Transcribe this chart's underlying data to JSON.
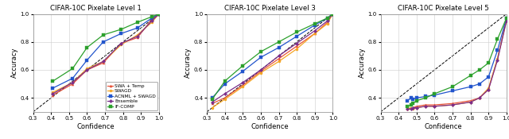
{
  "titles": [
    "CIFAR-10C Pixelate Level 1",
    "CIFAR-10C Pixelate Level 3",
    "CIFAR-10C Pixelate Level 5"
  ],
  "legend_labels": [
    "SWA + Temp",
    "SWAGD",
    "ACNML + SWAGD",
    "Ensemble",
    "IF-COMP"
  ],
  "colors": [
    "#e8543a",
    "#f5a623",
    "#2255cc",
    "#7b2d8b",
    "#2ca02c"
  ],
  "markers": [
    "^",
    "o",
    "s",
    "D",
    "s"
  ],
  "plot1": {
    "swa_temp": [
      [
        0.41,
        0.52,
        0.6,
        0.69,
        0.79,
        0.88,
        0.96,
        1.0
      ],
      [
        0.42,
        0.5,
        0.6,
        0.65,
        0.79,
        0.83,
        0.96,
        1.0
      ]
    ],
    "swagd": [
      [
        0.41,
        0.52,
        0.6,
        0.69,
        0.79,
        0.88,
        0.96,
        1.0
      ],
      [
        0.44,
        0.51,
        0.61,
        0.66,
        0.78,
        0.85,
        0.94,
        1.0
      ]
    ],
    "acnml_swagd": [
      [
        0.41,
        0.52,
        0.6,
        0.69,
        0.79,
        0.88,
        0.96,
        1.0
      ],
      [
        0.47,
        0.54,
        0.67,
        0.8,
        0.86,
        0.9,
        0.97,
        1.0
      ]
    ],
    "ensemble": [
      [
        0.41,
        0.52,
        0.6,
        0.69,
        0.79,
        0.88,
        0.96,
        1.0
      ],
      [
        0.43,
        0.51,
        0.6,
        0.66,
        0.79,
        0.84,
        0.95,
        1.0
      ]
    ],
    "ifcomp": [
      [
        0.41,
        0.52,
        0.6,
        0.69,
        0.79,
        0.88,
        0.96,
        1.0
      ],
      [
        0.52,
        0.61,
        0.76,
        0.85,
        0.89,
        0.94,
        0.98,
        1.0
      ]
    ]
  },
  "plot2": {
    "swa_temp": [
      [
        0.33,
        0.4,
        0.5,
        0.6,
        0.7,
        0.8,
        0.9,
        0.97,
        1.0
      ],
      [
        0.36,
        0.4,
        0.49,
        0.59,
        0.68,
        0.77,
        0.86,
        0.94,
        1.0
      ]
    ],
    "swagd": [
      [
        0.33,
        0.4,
        0.5,
        0.6,
        0.7,
        0.8,
        0.9,
        0.97,
        1.0
      ],
      [
        0.33,
        0.39,
        0.48,
        0.58,
        0.66,
        0.75,
        0.86,
        0.93,
        1.0
      ]
    ],
    "acnml_swagd": [
      [
        0.33,
        0.4,
        0.5,
        0.6,
        0.7,
        0.8,
        0.9,
        0.97,
        1.0
      ],
      [
        0.4,
        0.5,
        0.59,
        0.69,
        0.76,
        0.84,
        0.92,
        0.97,
        1.0
      ]
    ],
    "ensemble": [
      [
        0.33,
        0.4,
        0.5,
        0.6,
        0.7,
        0.8,
        0.9,
        0.97,
        1.0
      ],
      [
        0.37,
        0.43,
        0.51,
        0.6,
        0.7,
        0.79,
        0.88,
        0.95,
        1.0
      ]
    ],
    "ifcomp": [
      [
        0.33,
        0.4,
        0.5,
        0.6,
        0.7,
        0.8,
        0.9,
        0.97,
        1.0
      ],
      [
        0.39,
        0.52,
        0.63,
        0.73,
        0.8,
        0.87,
        0.93,
        0.97,
        1.0
      ]
    ]
  },
  "plot3": {
    "swa_temp": [
      [
        0.45,
        0.47,
        0.48,
        0.5,
        0.55,
        0.6,
        0.7,
        0.8,
        0.85,
        0.9,
        0.95,
        1.0
      ],
      [
        0.32,
        0.33,
        0.33,
        0.34,
        0.35,
        0.35,
        0.36,
        0.38,
        0.4,
        0.46,
        0.68,
        0.96
      ]
    ],
    "swagd": [
      [
        0.45,
        0.47,
        0.48,
        0.5,
        0.55,
        0.6,
        0.7,
        0.8,
        0.85,
        0.9,
        0.95,
        1.0
      ],
      [
        0.32,
        0.33,
        0.32,
        0.33,
        0.34,
        0.34,
        0.35,
        0.37,
        0.4,
        0.47,
        0.68,
        0.95
      ]
    ],
    "acnml_swagd": [
      [
        0.45,
        0.47,
        0.48,
        0.5,
        0.55,
        0.6,
        0.7,
        0.8,
        0.85,
        0.9,
        0.95,
        1.0
      ],
      [
        0.38,
        0.4,
        0.39,
        0.4,
        0.41,
        0.42,
        0.45,
        0.48,
        0.5,
        0.55,
        0.74,
        0.97
      ]
    ],
    "ensemble": [
      [
        0.45,
        0.47,
        0.48,
        0.5,
        0.55,
        0.6,
        0.7,
        0.8,
        0.85,
        0.9,
        0.95,
        1.0
      ],
      [
        0.32,
        0.32,
        0.33,
        0.33,
        0.34,
        0.34,
        0.35,
        0.37,
        0.4,
        0.46,
        0.67,
        0.95
      ]
    ],
    "ifcomp": [
      [
        0.45,
        0.47,
        0.48,
        0.5,
        0.55,
        0.6,
        0.7,
        0.8,
        0.85,
        0.9,
        0.95,
        1.0
      ],
      [
        0.34,
        0.35,
        0.36,
        0.38,
        0.4,
        0.43,
        0.48,
        0.56,
        0.6,
        0.65,
        0.82,
        0.97
      ]
    ]
  }
}
